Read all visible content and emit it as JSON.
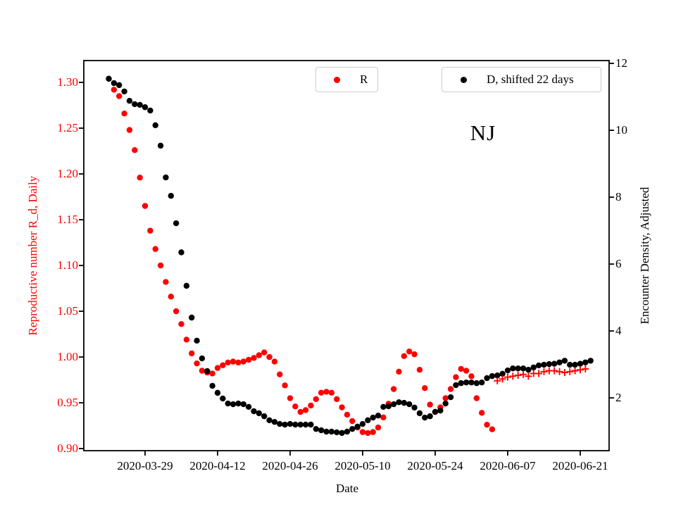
{
  "figure": {
    "annotation": "NJ",
    "xlabel": "Date",
    "ylabel_left": "Reproductive number R_d, Daily",
    "ylabel_right": "Encounter Density, Adjusted",
    "colors": {
      "red": "#ff0000",
      "black": "#000000",
      "legend_border": "#cccccc",
      "background": "#ffffff"
    }
  },
  "legend": {
    "r_label": "R",
    "d_label": "D, shifted 22 days"
  },
  "chart_data": {
    "type": "scatter",
    "title_annotation": "NJ",
    "xlabel": "Date",
    "x_axis": {
      "tick_dates": [
        "2020-03-29",
        "2020-04-12",
        "2020-04-26",
        "2020-05-10",
        "2020-05-24",
        "2020-06-07",
        "2020-06-21"
      ],
      "approx_range": [
        "2020-03-17",
        "2020-06-27"
      ],
      "cadence": "daily"
    },
    "left_axis": {
      "label": "Reproductive number R_d, Daily",
      "color": "#ff0000",
      "tick_labels": [
        "1.30",
        "1.25",
        "1.20",
        "1.15",
        "1.10",
        "1.05",
        "1.00",
        "0.95",
        "0.90"
      ],
      "range": [
        0.898,
        1.324
      ]
    },
    "right_axis": {
      "label": "Encounter Density, Adjusted",
      "color": "#000000",
      "tick_labels": [
        "12",
        "10",
        "8",
        "6",
        "4",
        "2"
      ],
      "range": [
        0.42,
        12.08
      ]
    },
    "legend_entries": [
      {
        "label": "R",
        "marker": "circle",
        "color": "#ff0000"
      },
      {
        "label": "D, shifted 22 days",
        "marker": "circle",
        "color": "#000000"
      }
    ],
    "series": [
      {
        "name": "R",
        "axis": "left",
        "marker": "circle",
        "color": "#ff0000",
        "cadence": "daily",
        "start_date": "2020-03-22",
        "values": [
          1.304,
          1.292,
          1.285,
          1.266,
          1.248,
          1.226,
          1.196,
          1.165,
          1.138,
          1.118,
          1.1,
          1.082,
          1.066,
          1.05,
          1.036,
          1.019,
          1.004,
          0.993,
          0.985,
          0.983,
          0.982,
          0.988,
          0.991,
          0.994,
          0.995,
          0.994,
          0.995,
          0.997,
          0.999,
          1.002,
          1.005,
          1.0,
          0.995,
          0.981,
          0.969,
          0.955,
          0.946,
          0.94,
          0.942,
          0.947,
          0.954,
          0.961,
          0.962,
          0.961,
          0.954,
          0.945,
          0.937,
          0.93,
          0.923,
          0.918,
          0.917,
          0.918,
          0.923,
          0.934,
          0.949,
          0.965,
          0.984,
          1.001,
          1.006,
          1.003,
          0.986,
          0.966,
          0.948,
          0.94,
          0.945,
          0.955,
          0.965,
          0.978,
          0.987,
          0.985,
          0.979,
          0.955,
          0.939,
          0.926,
          0.921
        ]
      },
      {
        "name": "D, shifted 22 days",
        "axis": "right",
        "marker": "circle",
        "color": "#000000",
        "cadence": "daily",
        "start_date": "2020-03-22",
        "values": [
          11.54,
          11.41,
          11.35,
          11.16,
          10.88,
          10.78,
          10.76,
          10.69,
          10.59,
          10.15,
          9.54,
          8.59,
          8.04,
          7.22,
          6.35,
          5.35,
          4.4,
          3.71,
          3.18,
          2.8,
          2.36,
          2.15,
          1.98,
          1.83,
          1.81,
          1.83,
          1.81,
          1.73,
          1.6,
          1.54,
          1.45,
          1.33,
          1.28,
          1.22,
          1.2,
          1.22,
          1.2,
          1.2,
          1.2,
          1.2,
          1.07,
          1.03,
          0.99,
          0.99,
          0.97,
          0.95,
          0.99,
          1.07,
          1.14,
          1.22,
          1.33,
          1.41,
          1.47,
          1.73,
          1.75,
          1.81,
          1.87,
          1.85,
          1.81,
          1.71,
          1.54,
          1.41,
          1.45,
          1.58,
          1.62,
          1.83,
          2.02,
          2.38,
          2.44,
          2.46,
          2.46,
          2.44,
          2.46,
          2.59,
          2.65,
          2.67,
          2.72,
          2.82,
          2.88,
          2.88,
          2.88,
          2.84,
          2.91,
          2.97,
          2.99,
          3.01,
          3.02,
          3.06,
          3.11,
          2.99,
          2.99,
          3.02,
          3.06,
          3.11
        ]
      },
      {
        "name": "R continuation (plus markers)",
        "axis": "left",
        "marker": "plus",
        "color": "#ff0000",
        "cadence": "daily",
        "start_date": "2020-06-05",
        "values": [
          0.974,
          0.976,
          0.978,
          0.979,
          0.98,
          0.981,
          0.979,
          0.982,
          0.982,
          0.984,
          0.985,
          0.985,
          0.984,
          0.983,
          0.984,
          0.985,
          0.986,
          0.987
        ]
      }
    ]
  }
}
